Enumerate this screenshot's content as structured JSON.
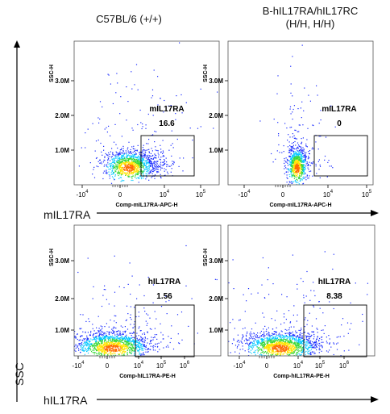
{
  "columns": {
    "left_title": "C57BL/6 (+/+)",
    "right_title_line1": "B-hIL17RA/hIL17RC",
    "right_title_line2": "(H/H, H/H)"
  },
  "rows": {
    "top_label": "mIL17RA",
    "bottom_label": "hIL17RA"
  },
  "y_axis_label": "SSC",
  "colors": {
    "density_low": "#1a2cff",
    "density_mid_low": "#00c8ff",
    "density_mid": "#38d838",
    "density_high": "#ffe400",
    "density_peak": "#ff6a00",
    "gate": "#000000"
  },
  "chart_data": [
    {
      "type": "scatter",
      "subtype": "flow-cytometry-density",
      "column": "C57BL/6 (+/+)",
      "xlabel": "Comp-mIL17RA-APC-H",
      "ylabel": "SSC-H",
      "x_ticks": [
        "-10^4",
        "0",
        "10^4",
        "10^5"
      ],
      "y_ticks": [
        "1.0M",
        "2.0M",
        "3.0M"
      ],
      "gate_label": "mIL17RA",
      "gate_value": "16.6"
    },
    {
      "type": "scatter",
      "subtype": "flow-cytometry-density",
      "column": "B-hIL17RA/hIL17RC (H/H, H/H)",
      "xlabel": "Comp-mIL17RA-APC-H",
      "ylabel": "SSC-H",
      "x_ticks": [
        "-10^4",
        "0",
        "10^4",
        "10^5"
      ],
      "y_ticks": [
        "1.0M",
        "2.0M",
        "3.0M"
      ],
      "gate_label": "mIL17RA",
      "gate_value": "0"
    },
    {
      "type": "scatter",
      "subtype": "flow-cytometry-density",
      "column": "C57BL/6 (+/+)",
      "xlabel": "Comp-hIL17RA-PE-H",
      "ylabel": "SSC-H",
      "x_ticks": [
        "-10^4",
        "0",
        "10^4",
        "10^5",
        "10^6"
      ],
      "y_ticks": [
        "1.0M",
        "2.0M",
        "3.0M"
      ],
      "gate_label": "hIL17RA",
      "gate_value": "1.56"
    },
    {
      "type": "scatter",
      "subtype": "flow-cytometry-density",
      "column": "B-hIL17RA/hIL17RC (H/H, H/H)",
      "xlabel": "Comp-hIL17RA-PE-H",
      "ylabel": "SSC-H",
      "x_ticks": [
        "-10^4",
        "0",
        "10^4",
        "10^5",
        "10^6"
      ],
      "y_ticks": [
        "1.0M",
        "2.0M",
        "3.0M"
      ],
      "gate_label": "hIL17RA",
      "gate_value": "8.38"
    }
  ]
}
